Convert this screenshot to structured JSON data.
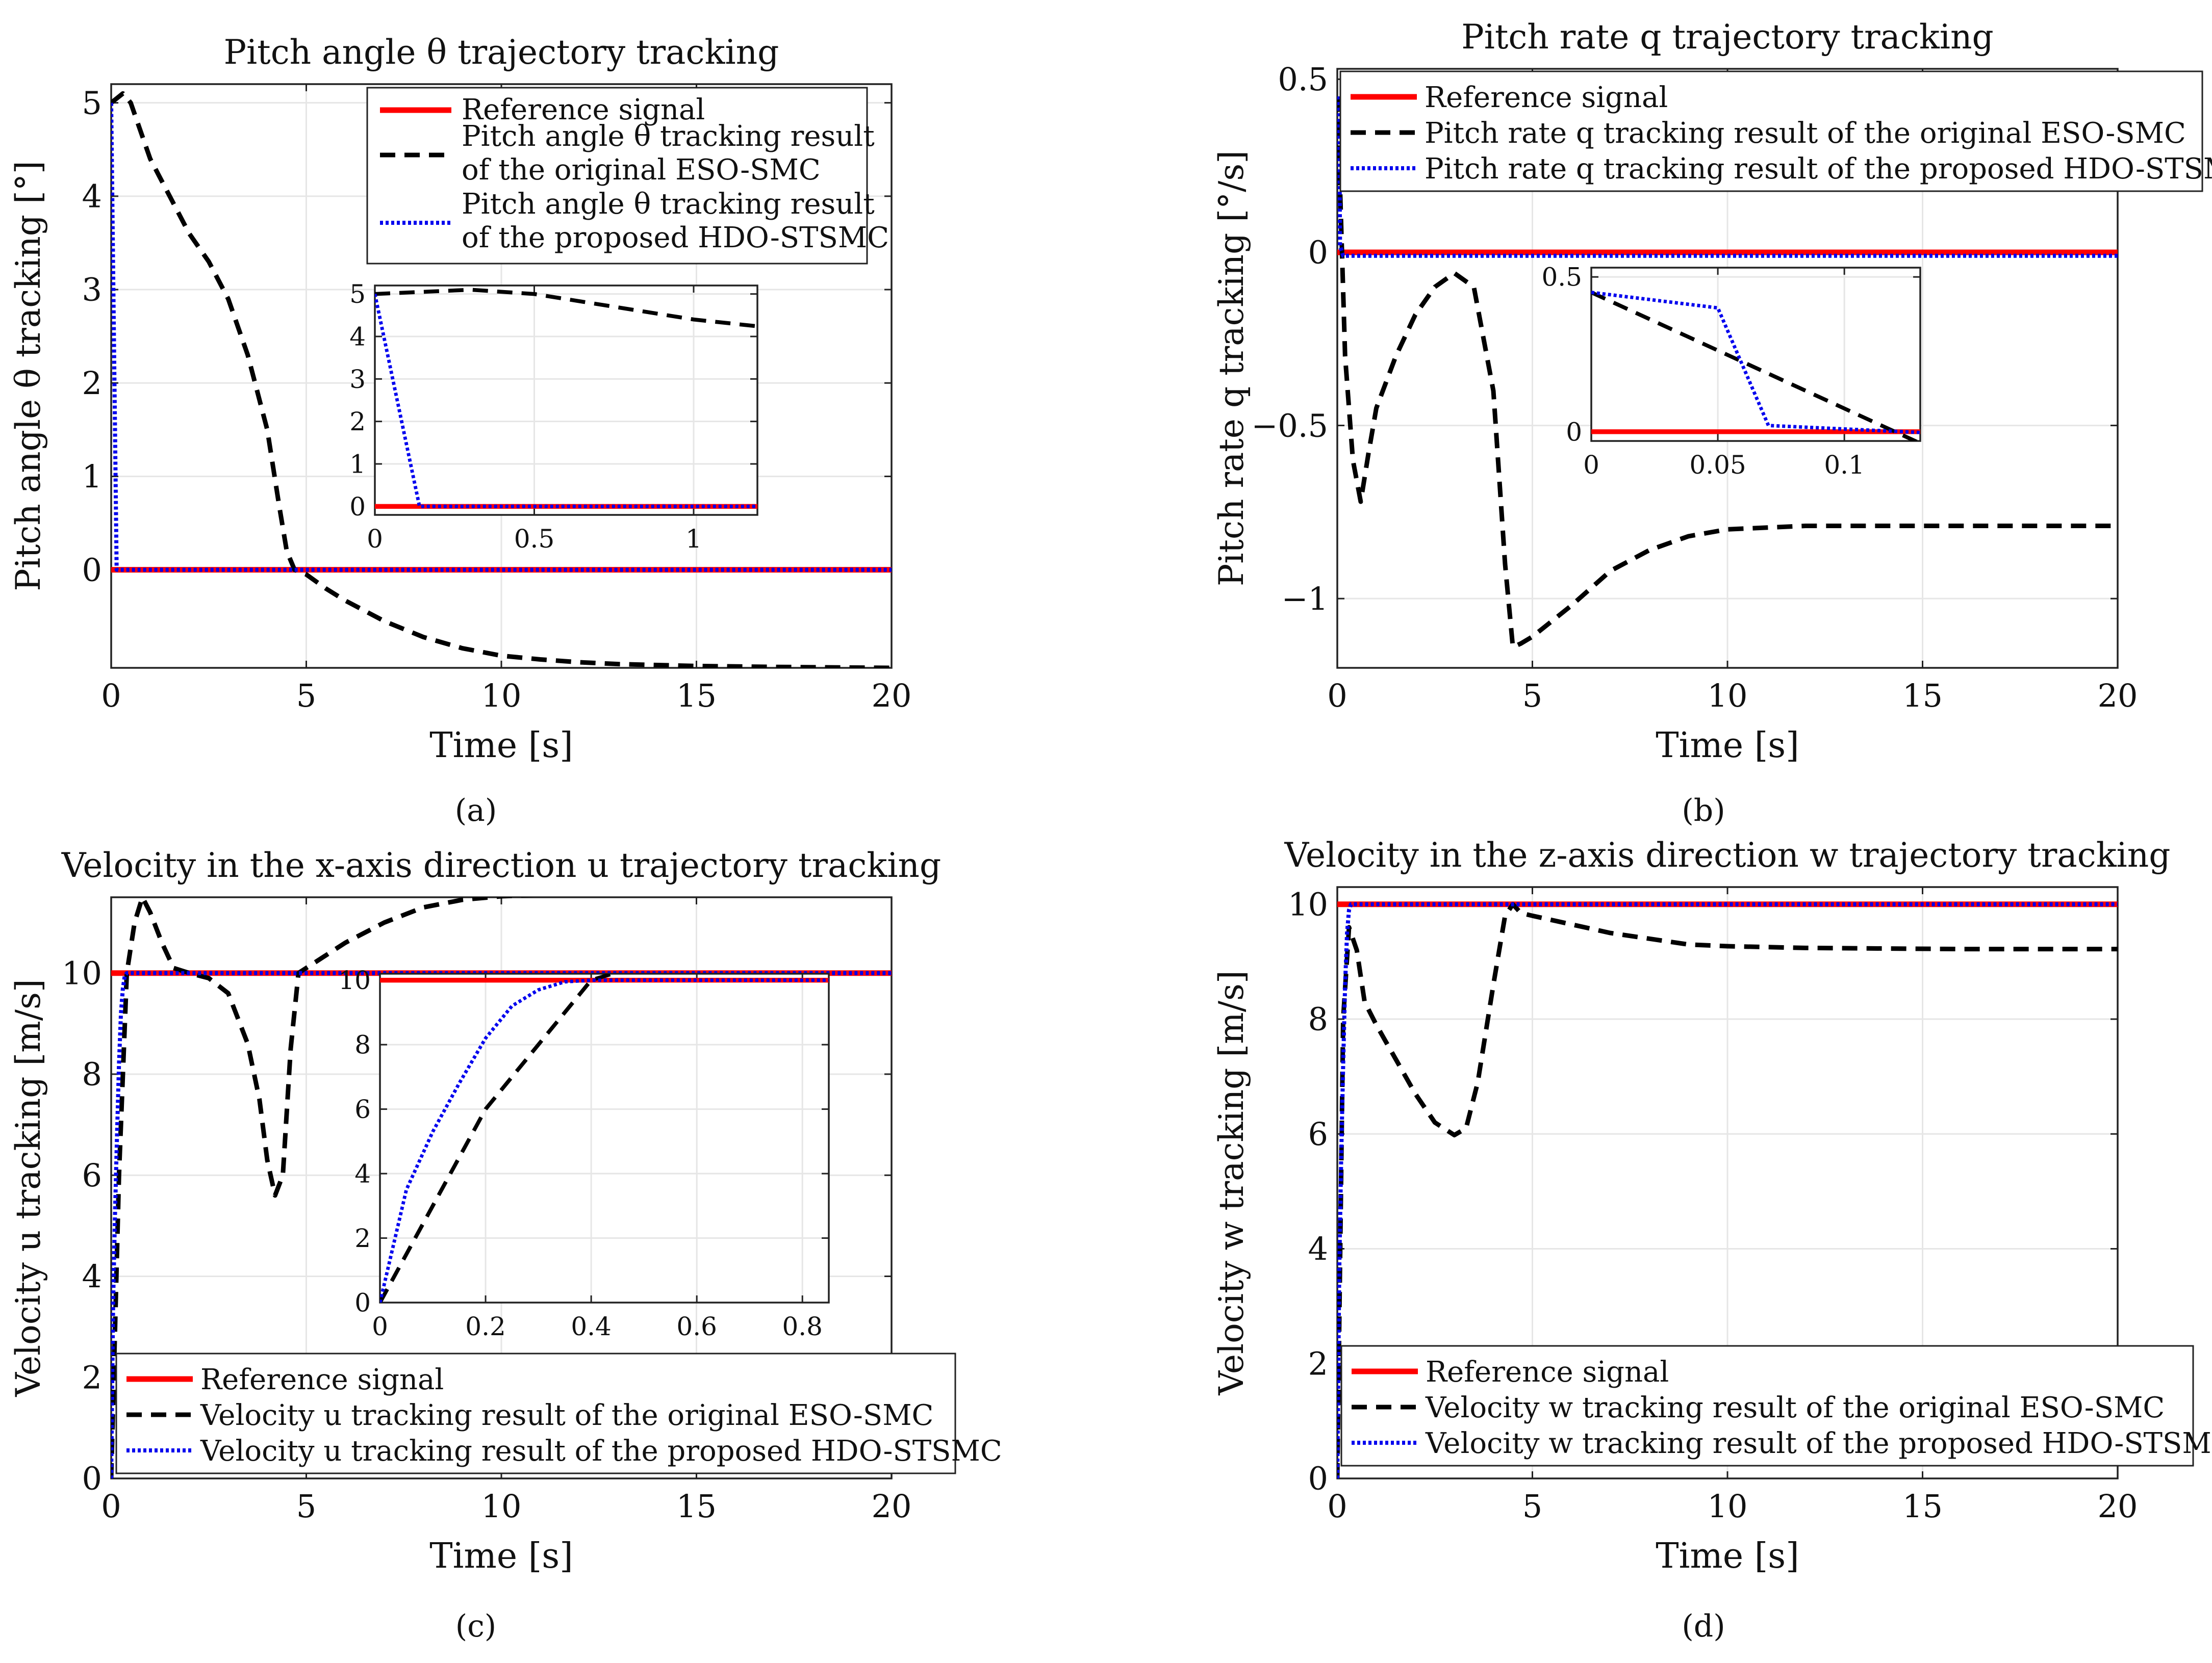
{
  "colors": {
    "reference": "#ff0000",
    "eso": "#000000",
    "hdo": "#0000ee",
    "grid": "#e6e6e6",
    "axis": "#222222"
  },
  "panel_labels": [
    "(a)",
    "(b)",
    "(c)",
    "(d)"
  ],
  "chart_data": [
    {
      "type": "line",
      "title": "Pitch angle θ trajectory tracking",
      "xlabel": "Time [s]",
      "ylabel": "Pitch angle θ tracking [°]",
      "xlim": [
        0,
        20
      ],
      "ylim": [
        -1.05,
        5.2
      ],
      "xticks": [
        0,
        5,
        10,
        15,
        20
      ],
      "xtick_labels": [
        "0",
        "5",
        "10",
        "15",
        "20"
      ],
      "yticks": [
        0,
        1,
        2,
        3,
        4,
        5
      ],
      "ytick_labels": [
        "0",
        "1",
        "2",
        "3",
        "4",
        "5"
      ],
      "legend": "top-right",
      "series": [
        {
          "name": "Reference signal",
          "style": "reference",
          "x": [
            0,
            20
          ],
          "y": [
            0,
            0
          ]
        },
        {
          "name": "Pitch angle θ tracking result of the original ESO-SMC",
          "style": "eso",
          "x": [
            0,
            0.15,
            0.3,
            0.5,
            1.0,
            1.5,
            2.0,
            2.5,
            3.0,
            3.5,
            4.0,
            4.3,
            4.5,
            4.7,
            5.0,
            5.5,
            6,
            7,
            8,
            9,
            10,
            11,
            12,
            13,
            14,
            15,
            17,
            20
          ],
          "y": [
            5.0,
            5.05,
            5.1,
            5.0,
            4.4,
            4.0,
            3.6,
            3.3,
            2.9,
            2.3,
            1.5,
            0.7,
            0.2,
            0.0,
            -0.05,
            -0.2,
            -0.33,
            -0.55,
            -0.72,
            -0.84,
            -0.92,
            -0.96,
            -0.99,
            -1.01,
            -1.02,
            -1.03,
            -1.04,
            -1.05
          ]
        },
        {
          "name": "Pitch angle θ tracking result of the proposed HDO-STSMC",
          "style": "hdo",
          "x": [
            0,
            0.14,
            20
          ],
          "y": [
            5.0,
            0,
            0
          ]
        }
      ],
      "inset": {
        "xlim": [
          0,
          1.2
        ],
        "ylim": [
          -0.2,
          5.2
        ],
        "xticks": [
          0,
          0.5,
          1
        ],
        "xtick_labels": [
          "0",
          "0.5",
          "1"
        ],
        "yticks": [
          0,
          1,
          2,
          3,
          4,
          5
        ],
        "ytick_labels": [
          "0",
          "1",
          "2",
          "3",
          "4",
          "5"
        ]
      }
    },
    {
      "type": "line",
      "title": "Pitch rate q trajectory tracking",
      "xlabel": "Time [s]",
      "ylabel": "Pitch rate q tracking [°/s]",
      "xlim": [
        0,
        20
      ],
      "ylim": [
        -1.2,
        0.53
      ],
      "xticks": [
        0,
        5,
        10,
        15,
        20
      ],
      "xtick_labels": [
        "0",
        "5",
        "10",
        "15",
        "20"
      ],
      "yticks": [
        -1,
        -0.5,
        0,
        0.5
      ],
      "ytick_labels": [
        "−1",
        "−0.5",
        "0",
        "0.5"
      ],
      "legend": "top-right",
      "series": [
        {
          "name": "Reference signal",
          "style": "reference",
          "x": [
            0,
            20
          ],
          "y": [
            0,
            0
          ]
        },
        {
          "name": "Pitch rate q tracking result of the original ESO-SMC",
          "style": "eso",
          "x": [
            0,
            0.2,
            0.4,
            0.6,
            0.8,
            1.0,
            1.5,
            2.0,
            2.5,
            3.0,
            3.5,
            4.0,
            4.3,
            4.5,
            4.7,
            5.0,
            6,
            7,
            8,
            9,
            10,
            12,
            14,
            16,
            18,
            20
          ],
          "y": [
            0.45,
            -0.3,
            -0.6,
            -0.72,
            -0.58,
            -0.45,
            -0.3,
            -0.18,
            -0.1,
            -0.06,
            -0.1,
            -0.4,
            -0.9,
            -1.14,
            -1.13,
            -1.11,
            -1.02,
            -0.92,
            -0.86,
            -0.82,
            -0.8,
            -0.79,
            -0.79,
            -0.79,
            -0.79,
            -0.79
          ]
        },
        {
          "name": "Pitch rate q tracking result of the proposed HDO-STSMC",
          "style": "hdo",
          "x": [
            0,
            0.05,
            0.07,
            0.15,
            0.5,
            20
          ],
          "y": [
            0.45,
            0.4,
            0.02,
            -0.01,
            -0.01,
            -0.01
          ]
        }
      ],
      "inset": {
        "xlim": [
          0,
          0.13
        ],
        "ylim": [
          -0.03,
          0.53
        ],
        "xticks": [
          0,
          0.05,
          0.1
        ],
        "xtick_labels": [
          "0",
          "0.05",
          "0.1"
        ],
        "yticks": [
          0,
          0.5
        ],
        "ytick_labels": [
          "0",
          "0.5"
        ]
      }
    },
    {
      "type": "line",
      "title": "Velocity in the x-axis direction u trajectory tracking",
      "xlabel": "Time [s]",
      "ylabel": "Velocity u tracking [m/s]",
      "xlim": [
        0,
        20
      ],
      "ylim": [
        0,
        11.5
      ],
      "xticks": [
        0,
        5,
        10,
        15,
        20
      ],
      "xtick_labels": [
        "0",
        "5",
        "10",
        "15",
        "20"
      ],
      "yticks": [
        0,
        2,
        4,
        6,
        8,
        10
      ],
      "ytick_labels": [
        "0",
        "2",
        "4",
        "6",
        "8",
        "10"
      ],
      "legend": "bottom-right",
      "series": [
        {
          "name": "Reference signal",
          "style": "reference",
          "x": [
            0,
            20
          ],
          "y": [
            10,
            10
          ]
        },
        {
          "name": "Velocity u tracking result of the original ESO-SMC",
          "style": "eso",
          "x": [
            0,
            0.2,
            0.4,
            0.6,
            0.8,
            1.0,
            1.3,
            1.6,
            2.0,
            2.5,
            3.0,
            3.5,
            3.8,
            4.0,
            4.2,
            4.4,
            4.6,
            4.8,
            5.0,
            6,
            7,
            8,
            9,
            10,
            11,
            12,
            14,
            16,
            18,
            20
          ],
          "y": [
            0,
            6.0,
            10.0,
            11.0,
            11.5,
            11.2,
            10.6,
            10.1,
            10.0,
            9.9,
            9.6,
            8.6,
            7.5,
            6.3,
            5.6,
            6.0,
            8.5,
            10.0,
            10.1,
            10.6,
            11.0,
            11.3,
            11.45,
            11.52,
            11.55,
            11.56,
            11.57,
            11.57,
            11.57,
            11.57
          ]
        },
        {
          "name": "Velocity u tracking result of the proposed HDO-STSMC",
          "style": "hdo",
          "x": [
            0,
            0.05,
            0.1,
            0.15,
            0.2,
            0.25,
            0.3,
            0.35,
            0.4,
            20
          ],
          "y": [
            0,
            3.5,
            5.3,
            6.8,
            8.2,
            9.2,
            9.7,
            9.95,
            10.0,
            10.0
          ]
        }
      ],
      "inset": {
        "xlim": [
          0,
          0.85
        ],
        "ylim": [
          0,
          10.2
        ],
        "xticks": [
          0,
          0.2,
          0.4,
          0.6,
          0.8
        ],
        "xtick_labels": [
          "0",
          "0.2",
          "0.4",
          "0.6",
          "0.8"
        ],
        "yticks": [
          0,
          2,
          4,
          6,
          8,
          10
        ],
        "ytick_labels": [
          "0",
          "2",
          "4",
          "6",
          "8",
          "10"
        ]
      }
    },
    {
      "type": "line",
      "title": "Velocity in the z-axis direction w trajectory tracking",
      "xlabel": "Time [s]",
      "ylabel": "Velocity w tracking [m/s]",
      "xlim": [
        0,
        20
      ],
      "ylim": [
        0,
        10.3
      ],
      "xticks": [
        0,
        5,
        10,
        15,
        20
      ],
      "xtick_labels": [
        "0",
        "5",
        "10",
        "15",
        "20"
      ],
      "yticks": [
        0,
        2,
        4,
        6,
        8,
        10
      ],
      "ytick_labels": [
        "0",
        "2",
        "4",
        "6",
        "8",
        "10"
      ],
      "legend": "bottom-right",
      "series": [
        {
          "name": "Reference signal",
          "style": "reference",
          "x": [
            0,
            20
          ],
          "y": [
            10,
            10
          ]
        },
        {
          "name": "Velocity w tracking result of the original ESO-SMC",
          "style": "eso",
          "x": [
            0,
            0.15,
            0.3,
            0.5,
            0.7,
            1.0,
            1.5,
            2.0,
            2.5,
            3.0,
            3.3,
            3.6,
            4.0,
            4.3,
            4.5,
            4.7,
            5.0,
            6,
            7,
            8,
            9,
            10,
            12,
            14,
            16,
            18,
            20
          ],
          "y": [
            0,
            8.0,
            9.6,
            9.2,
            8.3,
            7.9,
            7.3,
            6.7,
            6.2,
            5.98,
            6.1,
            6.9,
            8.6,
            9.8,
            10.0,
            9.85,
            9.8,
            9.65,
            9.5,
            9.4,
            9.3,
            9.27,
            9.24,
            9.23,
            9.22,
            9.22,
            9.22
          ]
        },
        {
          "name": "Velocity w tracking result of the proposed HDO-STSMC",
          "style": "hdo",
          "x": [
            0,
            0.05,
            0.1,
            0.15,
            0.2,
            0.25,
            0.3,
            0.35,
            20
          ],
          "y": [
            0,
            3.6,
            5.6,
            7.2,
            8.6,
            9.5,
            9.9,
            10.0,
            10.0
          ]
        }
      ]
    }
  ]
}
